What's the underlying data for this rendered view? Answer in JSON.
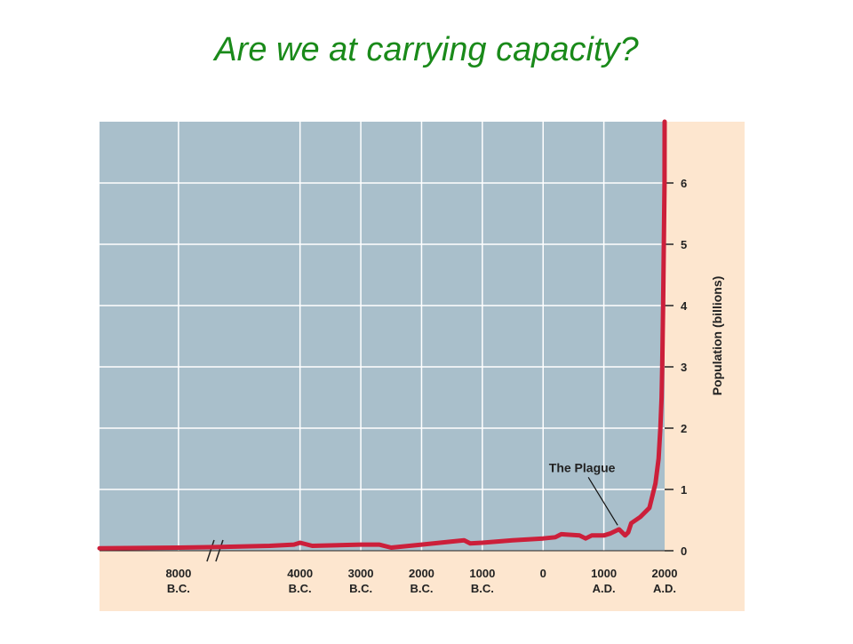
{
  "title": "Are we at carrying capacity?",
  "chart_data": {
    "type": "line",
    "y_label": "Population (billions)",
    "x": [
      -9300,
      -8000,
      -7400,
      -5400,
      -4500,
      -4100,
      -4000,
      -3800,
      -3000,
      -2700,
      -2500,
      -2000,
      -1500,
      -1300,
      -1200,
      -1000,
      -500,
      0,
      200,
      300,
      600,
      700,
      800,
      1000,
      1100,
      1250,
      1300,
      1350,
      1400,
      1450,
      1600,
      1750,
      1800,
      1850,
      1900,
      1930,
      1950,
      1960,
      1975,
      1987,
      1999,
      2000
    ],
    "series": [
      {
        "color": "#cc1f3a",
        "values": [
          0.04,
          0.05,
          0.06,
          0.06,
          0.08,
          0.1,
          0.13,
          0.08,
          0.1,
          0.1,
          0.05,
          0.1,
          0.15,
          0.17,
          0.12,
          0.13,
          0.17,
          0.2,
          0.22,
          0.27,
          0.25,
          0.2,
          0.25,
          0.25,
          0.28,
          0.35,
          0.3,
          0.25,
          0.3,
          0.45,
          0.55,
          0.7,
          0.9,
          1.1,
          1.5,
          2.0,
          2.5,
          3,
          4,
          5,
          6,
          7
        ]
      }
    ],
    "xlim": [
      -9300,
      2000
    ],
    "x_break": [
      -7400,
      -5400
    ],
    "xticks": [
      {
        "value": -8000,
        "label": "8000 B.C."
      },
      {
        "value": -4000,
        "label": "4000 B.C."
      },
      {
        "value": -3000,
        "label": "3000 B.C."
      },
      {
        "value": -2000,
        "label": "2000 B.C."
      },
      {
        "value": -1000,
        "label": "1000 B.C."
      },
      0,
      {
        "value": 1000,
        "label": "1000 A.D."
      },
      {
        "value": 2000,
        "label": "2000 A.D."
      }
    ],
    "ylim": [
      0,
      7
    ],
    "yticks": [
      0,
      1,
      2,
      3,
      4,
      5,
      6
    ],
    "grid": true,
    "annotations": [
      {
        "text": "The Plague",
        "x": 1300,
        "y": 0.3
      }
    ]
  }
}
